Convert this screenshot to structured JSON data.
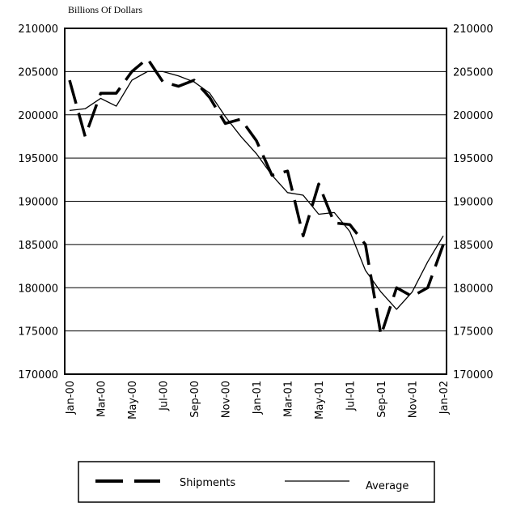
{
  "chart_data": {
    "type": "line",
    "ylabel": "Billions Of Dollars",
    "categories": [
      "Jan-00",
      null,
      "Mar-00",
      null,
      "May-00",
      null,
      "Jul-00",
      null,
      "Sep-00",
      null,
      "Nov-00",
      null,
      "Jan-01",
      null,
      "Mar-01",
      null,
      "May-01",
      null,
      "Jul-01",
      null,
      "Sep-01",
      null,
      "Nov-01",
      null,
      "Jan-02"
    ],
    "series": [
      {
        "name": "Shipments",
        "color": "#000000",
        "style": "dashed",
        "values": [
          204000,
          197500,
          202500,
          202500,
          205000,
          206500,
          203800,
          203300,
          204000,
          202000,
          199000,
          199500,
          197000,
          193000,
          193500,
          186000,
          192000,
          187500,
          187300,
          185000,
          174500,
          180000,
          179000,
          180000,
          185000
        ]
      },
      {
        "name": "Average",
        "color": "#000000",
        "style": "solid",
        "values": [
          200500,
          200700,
          201900,
          201000,
          204000,
          205000,
          205000,
          204500,
          203800,
          202500,
          199800,
          197500,
          195500,
          193000,
          191000,
          190700,
          188500,
          188700,
          186500,
          182000,
          179500,
          177500,
          179500,
          183000,
          186000
        ]
      }
    ],
    "ylim": [
      170000,
      210000
    ],
    "yticks": [
      170000,
      175000,
      180000,
      185000,
      190000,
      195000,
      200000,
      205000,
      210000
    ],
    "y2lim": [
      170000,
      210000
    ],
    "y2ticks": [
      170000,
      175000,
      180000,
      185000,
      190000,
      195000,
      200000,
      205000,
      210000
    ],
    "grid": true,
    "legend": "bottom"
  }
}
